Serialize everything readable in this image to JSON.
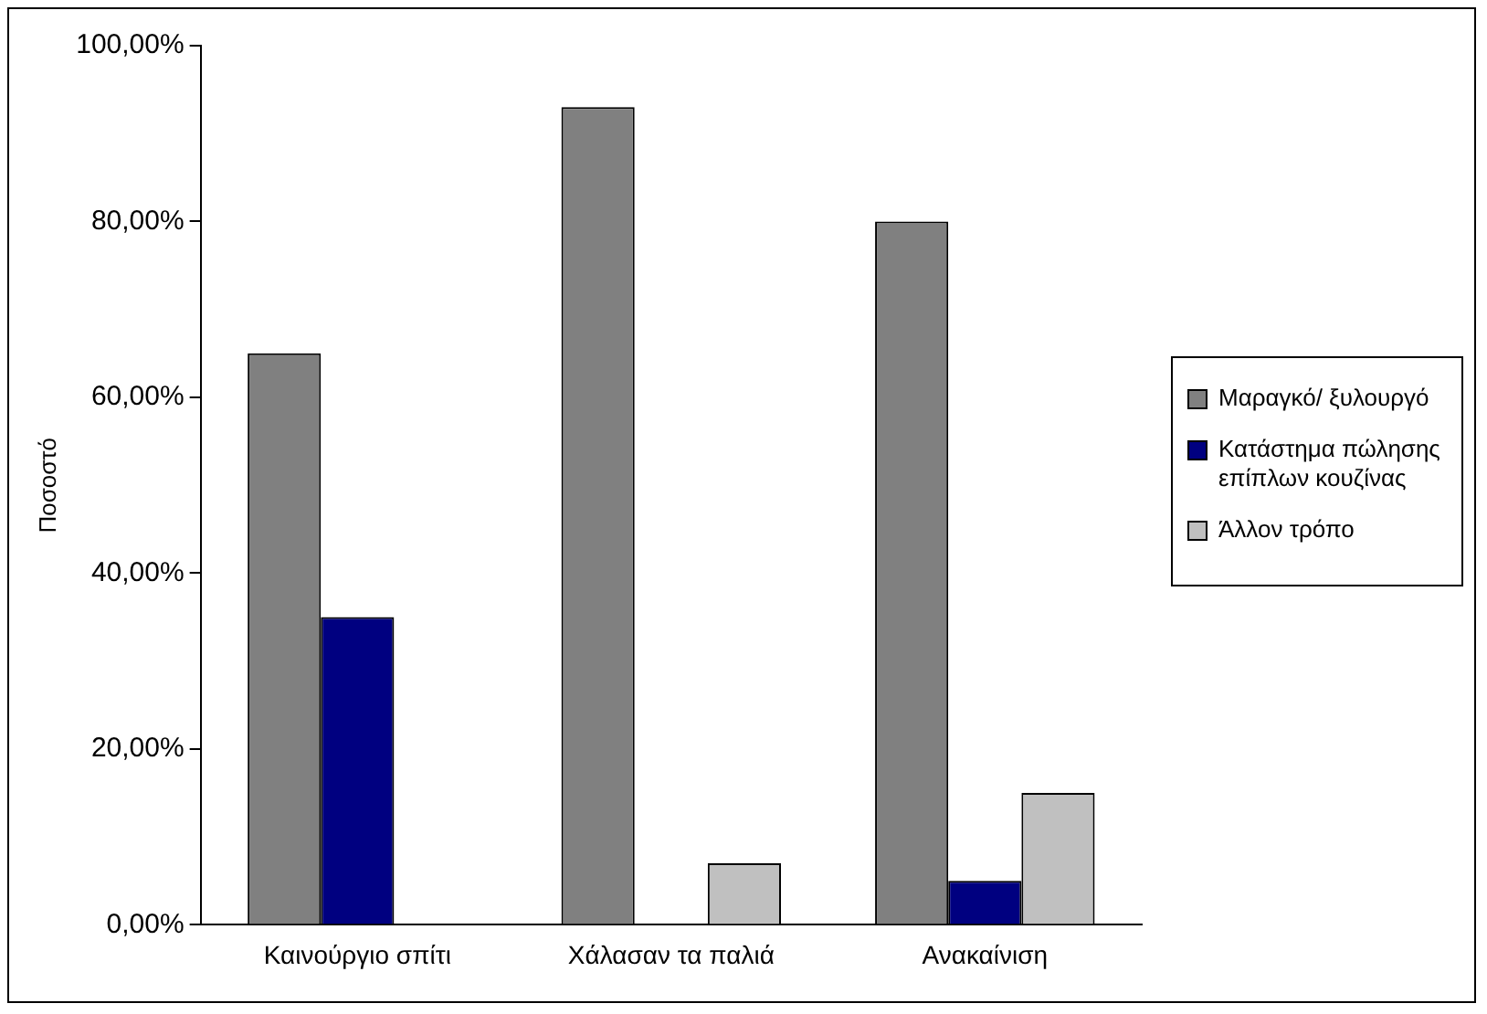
{
  "chart_data": {
    "type": "bar",
    "ylabel": "Ποσοστό",
    "categories": [
      "Καινούργιο σπίτι",
      "Χάλασαν τα παλιά",
      "Ανακαίνιση"
    ],
    "series": [
      {
        "name": "Μαραγκό/ ξυλουργό",
        "color": "#808080",
        "values": [
          65,
          93,
          80
        ]
      },
      {
        "name": "Κατάστημα πώλησης επίπλων κουζίνας",
        "color": "#000080",
        "values": [
          35,
          0,
          5
        ]
      },
      {
        "name": "Άλλον τρόπο",
        "color": "#c0c0c0",
        "values": [
          0,
          7,
          15
        ]
      }
    ],
    "ylim": [
      0,
      100
    ],
    "yticks": [
      {
        "value": 0,
        "label": "0,00%"
      },
      {
        "value": 20,
        "label": "20,00%"
      },
      {
        "value": 40,
        "label": "40,00%"
      },
      {
        "value": 60,
        "label": "60,00%"
      },
      {
        "value": 80,
        "label": "80,00%"
      },
      {
        "value": 100,
        "label": "100,00%"
      }
    ],
    "grid": false,
    "legend": "right"
  }
}
